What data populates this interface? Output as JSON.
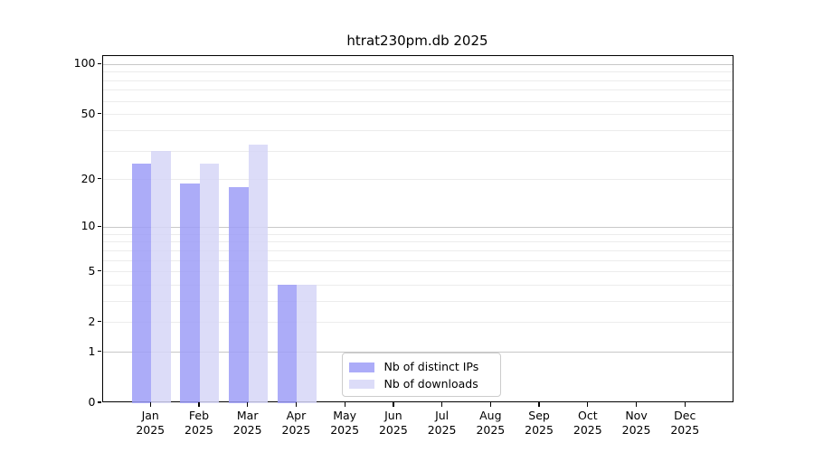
{
  "title": "htrat230pm.db 2025",
  "chart_data": {
    "type": "bar",
    "title": "htrat230pm.db 2025",
    "categories": [
      "Jan 2025",
      "Feb 2025",
      "Mar 2025",
      "Apr 2025",
      "May 2025",
      "Jun 2025",
      "Jul 2025",
      "Aug 2025",
      "Sep 2025",
      "Oct 2025",
      "Nov 2025",
      "Dec 2025"
    ],
    "series": [
      {
        "name": "Nb of distinct IPs",
        "color": "rgba(157,157,247,0.85)",
        "values": [
          25,
          19,
          18,
          4,
          0,
          0,
          0,
          0,
          0,
          0,
          0,
          0
        ]
      },
      {
        "name": "Nb of downloads",
        "color": "rgba(214,214,247,0.85)",
        "values": [
          30,
          25,
          33,
          4,
          0,
          0,
          0,
          0,
          0,
          0,
          0,
          0
        ]
      }
    ],
    "xlabel": "",
    "ylabel": "",
    "yscale": "log1p",
    "ylim": [
      0,
      113
    ],
    "yticks": [
      100,
      50,
      20,
      10,
      5,
      2,
      1,
      0
    ],
    "grid": "on",
    "gridline_major_color": "#c8c8c8",
    "gridline_minor_color": "#ececec",
    "legend_position": "lower center"
  }
}
